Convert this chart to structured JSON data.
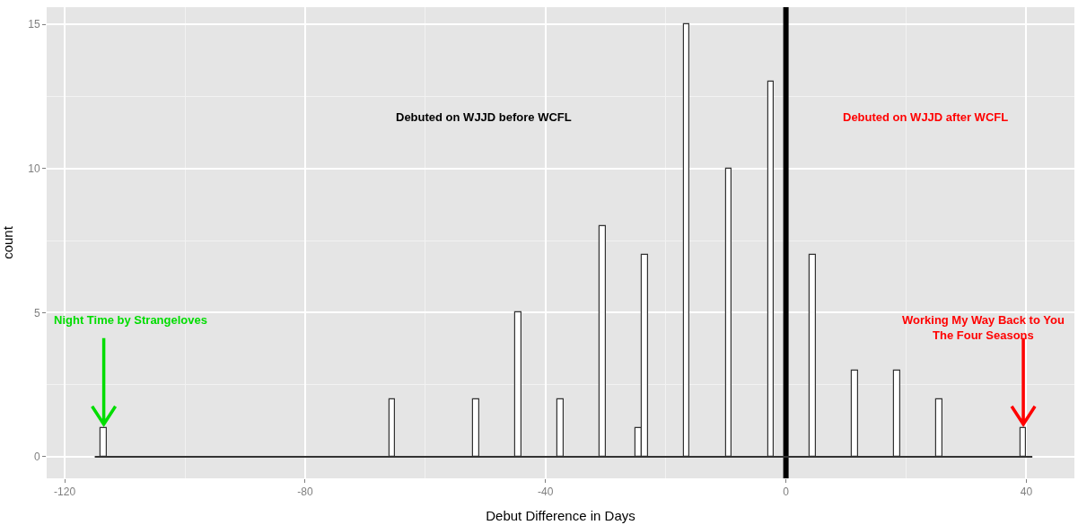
{
  "chart_data": {
    "type": "histogram",
    "xlabel": "Debut Difference in Days",
    "ylabel": "count",
    "bins": [
      -115,
      -114,
      -113,
      -112,
      -111,
      -110,
      -109,
      -108,
      -107,
      -106,
      -105,
      -104,
      -103,
      -102,
      -101,
      -100,
      -99,
      -98,
      -97,
      -96,
      -95,
      -94,
      -93,
      -92,
      -91,
      -90,
      -89,
      -88,
      -87,
      -86,
      -85,
      -84,
      -83,
      -82,
      -81,
      -80,
      -79,
      -78,
      -77,
      -76,
      -75,
      -74,
      -73,
      -72,
      -71,
      -70,
      -69,
      -68,
      -67,
      -66,
      -65,
      -64,
      -63,
      -62,
      -61,
      -60,
      -59,
      -58,
      -57,
      -56,
      -55,
      -54,
      -53,
      -52,
      -51,
      -50,
      -49,
      -48,
      -47,
      -46,
      -45,
      -44,
      -43,
      -42,
      -41,
      -40,
      -39,
      -38,
      -37,
      -36,
      -35,
      -34,
      -33,
      -32,
      -31,
      -30,
      -29,
      -28,
      -27,
      -26,
      -25,
      -24,
      -23,
      -22,
      -21,
      -20,
      -19,
      -18,
      -17,
      -16,
      -15,
      -14,
      -13,
      -12,
      -11,
      -10,
      -9,
      -8,
      -7,
      -6,
      -5,
      -4,
      -3,
      -2,
      -1,
      0,
      1,
      2,
      3,
      4,
      5,
      6,
      7,
      8,
      9,
      10,
      11,
      12,
      13,
      14,
      15,
      16,
      17,
      18,
      19,
      20,
      21,
      22,
      23,
      24,
      25,
      26,
      27,
      28,
      29,
      30,
      31,
      32,
      33,
      34,
      35,
      36,
      37,
      38,
      39,
      40,
      41
    ],
    "values": [
      0,
      1,
      0,
      0,
      0,
      0,
      0,
      0,
      0,
      0,
      0,
      0,
      0,
      0,
      0,
      0,
      0,
      0,
      0,
      0,
      0,
      0,
      0,
      0,
      0,
      0,
      0,
      0,
      0,
      0,
      0,
      0,
      0,
      0,
      0,
      0,
      0,
      0,
      0,
      0,
      0,
      0,
      0,
      0,
      0,
      0,
      0,
      0,
      0,
      2,
      0,
      0,
      0,
      0,
      0,
      0,
      0,
      0,
      0,
      0,
      0,
      0,
      0,
      2,
      0,
      0,
      0,
      0,
      0,
      0,
      5,
      0,
      0,
      0,
      0,
      0,
      0,
      2,
      0,
      0,
      0,
      0,
      0,
      0,
      8,
      0,
      0,
      0,
      0,
      0,
      1,
      7,
      0,
      0,
      0,
      0,
      0,
      0,
      15,
      0,
      0,
      0,
      0,
      0,
      0,
      10,
      0,
      0,
      0,
      0,
      0,
      0,
      13,
      0,
      0,
      0,
      0,
      0,
      0,
      7,
      0,
      0,
      0,
      0,
      0,
      0,
      3,
      0,
      0,
      0,
      0,
      0,
      0,
      3,
      0,
      0,
      0,
      0,
      0,
      0,
      2,
      0,
      0,
      0,
      0,
      0,
      0,
      0,
      0,
      0,
      0,
      0,
      0,
      0,
      1,
      0
    ],
    "color": "#ffffff",
    "xlim": [
      -123,
      48
    ],
    "ylim": [
      -0.75,
      15.6
    ],
    "xticks": [
      -120,
      -80,
      -40,
      0,
      40
    ],
    "yticks": [
      0,
      5,
      10,
      15
    ],
    "grid": true,
    "ref_lines": [
      {
        "axis": "x",
        "value": 0,
        "color": "#000000"
      },
      {
        "axis": "y",
        "value": 0,
        "color": "#333333"
      }
    ],
    "annotations": [
      "Debuted on WJJD before WCFL",
      "Debuted on WJJD after WCFL",
      {
        "text": "Night Time by Strangeloves",
        "x": -113.5,
        "y": 1
      },
      {
        "text": "Working My Way Back to You\nThe Four Seasons",
        "x": 39.5,
        "y": 1
      }
    ]
  }
}
